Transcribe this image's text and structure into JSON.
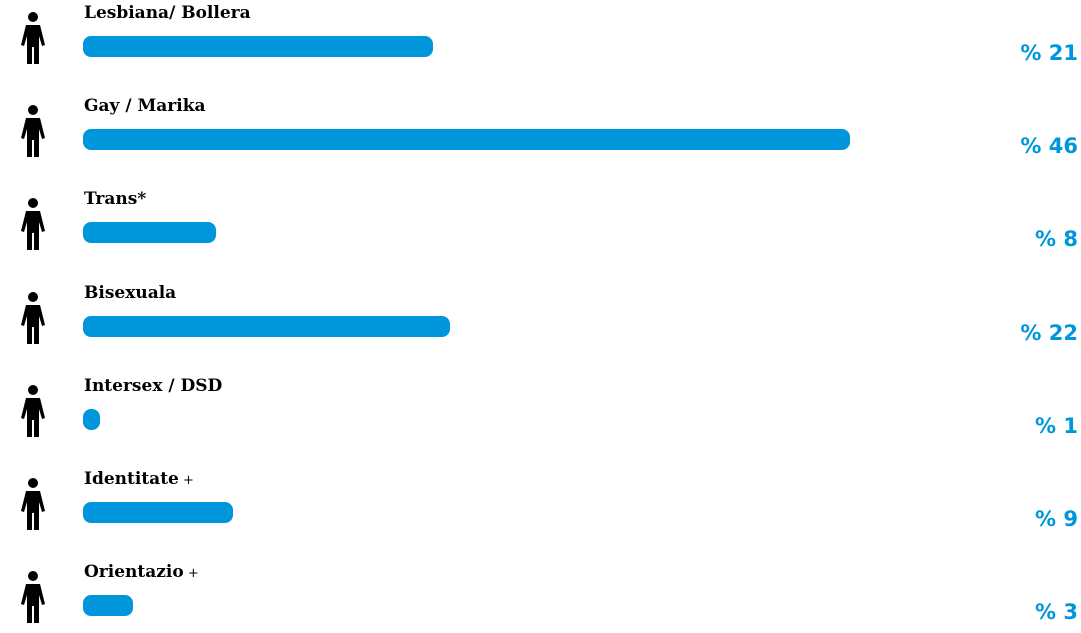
{
  "chart_data": {
    "type": "bar",
    "orientation": "horizontal",
    "categories": [
      "Lesbiana/ Bollera",
      "Gay / Marika",
      "Trans*",
      "Bisexuala",
      "Intersex / DSD",
      "Identitate",
      "Orientazio"
    ],
    "category_suffixes": [
      "",
      "",
      "",
      "",
      "",
      "+",
      "+"
    ],
    "values": [
      21,
      46,
      8,
      22,
      1,
      9,
      3
    ],
    "value_labels": [
      "% 21",
      "% 46",
      "% 8",
      "% 22",
      "% 1",
      "% 9",
      "% 3"
    ],
    "xlim": [
      0,
      46
    ],
    "grid": false,
    "bar_color": "#0096dc",
    "label_color": "#000000",
    "value_color": "#0096dc",
    "icon": "person-icon"
  }
}
